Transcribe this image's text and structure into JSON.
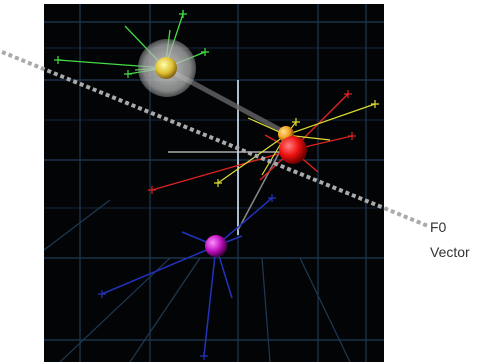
{
  "figure": {
    "annotation_line1": "F0",
    "annotation_line2": "Vector"
  },
  "colors": {
    "background": "#020406",
    "grid": "#1f3a55",
    "green_cluster": "#44dd44",
    "red_cluster": "#dd2222",
    "yellow_cluster": "#dddd33",
    "blue_cluster": "#2233bb",
    "magenta_node": "#cc22cc",
    "vector_line": "#aaaaaa"
  },
  "icons": {
    "nodes": "sphere-nodes",
    "vector": "dashed-vector-line"
  }
}
